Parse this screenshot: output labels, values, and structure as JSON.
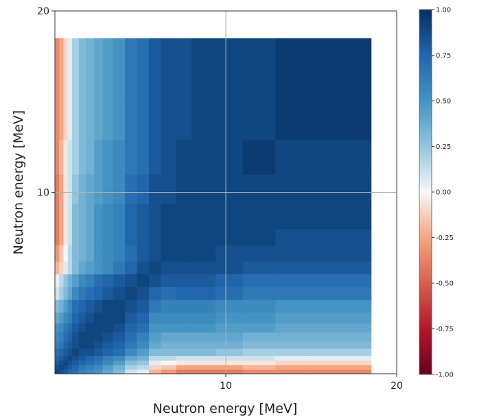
{
  "chart_data": {
    "type": "heatmap",
    "title": "",
    "xlabel": "Neutron energy [MeV]",
    "ylabel": "Neutron energy [MeV]",
    "xlim": [
      0,
      20
    ],
    "ylim": [
      0,
      20
    ],
    "x_ticks": [
      10,
      20
    ],
    "y_ticks": [
      10,
      20
    ],
    "tick_labels": {
      "x": [
        "10",
        "20"
      ],
      "y": [
        "10",
        "20"
      ]
    },
    "grid": true,
    "grid_lines": {
      "x": [
        10
      ],
      "y": [
        10
      ]
    },
    "colormap": "RdBu",
    "colors": {
      "neg": "#67001f",
      "mid": "#f7f7f7",
      "pos": "#053061"
    },
    "colorbar": {
      "range": [
        -1,
        1
      ],
      "ticks": [
        1.0,
        0.75,
        0.5,
        0.25,
        0.0,
        -0.25,
        -0.5,
        -0.75,
        -1.0
      ],
      "tick_labels": [
        "1.00",
        "0.75",
        "0.50",
        "0.25",
        "0.00",
        "-0.25",
        "-0.50",
        "-0.75",
        "-1.00"
      ]
    },
    "bin_edges": [
      0.0,
      0.25,
      0.5,
      0.75,
      1.0,
      1.4,
      1.8,
      2.3,
      2.8,
      3.4,
      4.1,
      4.8,
      5.5,
      6.2,
      7.1,
      8.0,
      9.4,
      11.0,
      12.9,
      15.0,
      18.5
    ],
    "values": [
      [
        0.9,
        0.85,
        0.8,
        0.75,
        0.7,
        0.6,
        0.55,
        0.5,
        0.4,
        0.3,
        0.1,
        0.05,
        -0.2,
        -0.3,
        -0.4,
        -0.4,
        -0.4,
        -0.35,
        -0.35,
        -0.35
      ],
      [
        0.85,
        0.9,
        0.85,
        0.8,
        0.75,
        0.65,
        0.6,
        0.55,
        0.45,
        0.35,
        0.2,
        0.15,
        -0.1,
        -0.15,
        -0.25,
        -0.25,
        -0.25,
        -0.2,
        -0.25,
        -0.25
      ],
      [
        0.8,
        0.85,
        0.9,
        0.85,
        0.8,
        0.75,
        0.7,
        0.65,
        0.55,
        0.45,
        0.3,
        0.25,
        0.05,
        0.0,
        -0.05,
        -0.05,
        -0.05,
        -0.05,
        -0.1,
        -0.1
      ],
      [
        0.75,
        0.8,
        0.85,
        0.9,
        0.85,
        0.8,
        0.75,
        0.7,
        0.6,
        0.55,
        0.4,
        0.35,
        0.15,
        0.15,
        0.1,
        0.1,
        0.1,
        0.1,
        0.05,
        0.05
      ],
      [
        0.7,
        0.75,
        0.8,
        0.85,
        0.9,
        0.85,
        0.85,
        0.8,
        0.75,
        0.7,
        0.55,
        0.45,
        0.3,
        0.3,
        0.3,
        0.3,
        0.25,
        0.2,
        0.2,
        0.2
      ],
      [
        0.6,
        0.65,
        0.75,
        0.8,
        0.85,
        0.9,
        0.9,
        0.85,
        0.8,
        0.75,
        0.65,
        0.55,
        0.4,
        0.35,
        0.35,
        0.35,
        0.35,
        0.3,
        0.3,
        0.3
      ],
      [
        0.55,
        0.6,
        0.7,
        0.75,
        0.85,
        0.9,
        0.9,
        0.9,
        0.85,
        0.8,
        0.7,
        0.6,
        0.45,
        0.4,
        0.4,
        0.4,
        0.4,
        0.35,
        0.35,
        0.35
      ],
      [
        0.5,
        0.55,
        0.65,
        0.7,
        0.8,
        0.85,
        0.9,
        0.9,
        0.9,
        0.85,
        0.75,
        0.7,
        0.5,
        0.5,
        0.5,
        0.5,
        0.45,
        0.45,
        0.4,
        0.4
      ],
      [
        0.4,
        0.45,
        0.55,
        0.6,
        0.75,
        0.8,
        0.85,
        0.9,
        0.9,
        0.9,
        0.8,
        0.75,
        0.55,
        0.55,
        0.55,
        0.55,
        0.5,
        0.5,
        0.45,
        0.45
      ],
      [
        0.3,
        0.35,
        0.45,
        0.55,
        0.7,
        0.75,
        0.8,
        0.85,
        0.9,
        0.9,
        0.85,
        0.8,
        0.65,
        0.6,
        0.6,
        0.6,
        0.55,
        0.55,
        0.5,
        0.5
      ],
      [
        0.1,
        0.2,
        0.3,
        0.4,
        0.55,
        0.65,
        0.7,
        0.75,
        0.8,
        0.85,
        0.9,
        0.85,
        0.75,
        0.7,
        0.75,
        0.75,
        0.7,
        0.65,
        0.65,
        0.65
      ],
      [
        0.05,
        0.15,
        0.25,
        0.35,
        0.45,
        0.55,
        0.6,
        0.7,
        0.75,
        0.8,
        0.85,
        0.9,
        0.85,
        0.8,
        0.8,
        0.8,
        0.75,
        0.7,
        0.7,
        0.7
      ],
      [
        -0.2,
        -0.1,
        0.05,
        0.15,
        0.3,
        0.4,
        0.45,
        0.5,
        0.55,
        0.65,
        0.75,
        0.85,
        0.9,
        0.85,
        0.85,
        0.85,
        0.85,
        0.8,
        0.8,
        0.8
      ],
      [
        -0.3,
        -0.15,
        0.0,
        0.15,
        0.3,
        0.35,
        0.4,
        0.5,
        0.55,
        0.6,
        0.7,
        0.8,
        0.85,
        0.9,
        0.9,
        0.9,
        0.85,
        0.85,
        0.85,
        0.85
      ],
      [
        -0.4,
        -0.25,
        -0.05,
        0.1,
        0.3,
        0.35,
        0.4,
        0.5,
        0.55,
        0.6,
        0.75,
        0.8,
        0.85,
        0.9,
        0.9,
        0.9,
        0.9,
        0.9,
        0.85,
        0.85
      ],
      [
        -0.4,
        -0.25,
        -0.05,
        0.1,
        0.3,
        0.35,
        0.4,
        0.5,
        0.55,
        0.6,
        0.75,
        0.8,
        0.85,
        0.9,
        0.9,
        0.9,
        0.9,
        0.9,
        0.9,
        0.9
      ],
      [
        -0.4,
        -0.25,
        -0.05,
        0.1,
        0.25,
        0.35,
        0.4,
        0.45,
        0.5,
        0.55,
        0.7,
        0.75,
        0.85,
        0.85,
        0.9,
        0.9,
        0.9,
        0.9,
        0.9,
        0.9
      ],
      [
        -0.35,
        -0.2,
        -0.05,
        0.1,
        0.2,
        0.3,
        0.35,
        0.45,
        0.5,
        0.55,
        0.65,
        0.7,
        0.8,
        0.85,
        0.9,
        0.9,
        0.9,
        0.95,
        0.9,
        0.9
      ],
      [
        -0.35,
        -0.25,
        -0.1,
        0.05,
        0.2,
        0.3,
        0.35,
        0.4,
        0.45,
        0.5,
        0.65,
        0.7,
        0.8,
        0.85,
        0.85,
        0.9,
        0.9,
        0.9,
        0.95,
        0.95
      ],
      [
        -0.35,
        -0.25,
        -0.1,
        0.05,
        0.2,
        0.3,
        0.35,
        0.4,
        0.45,
        0.5,
        0.65,
        0.7,
        0.8,
        0.85,
        0.85,
        0.9,
        0.9,
        0.9,
        0.95,
        0.95
      ]
    ]
  }
}
